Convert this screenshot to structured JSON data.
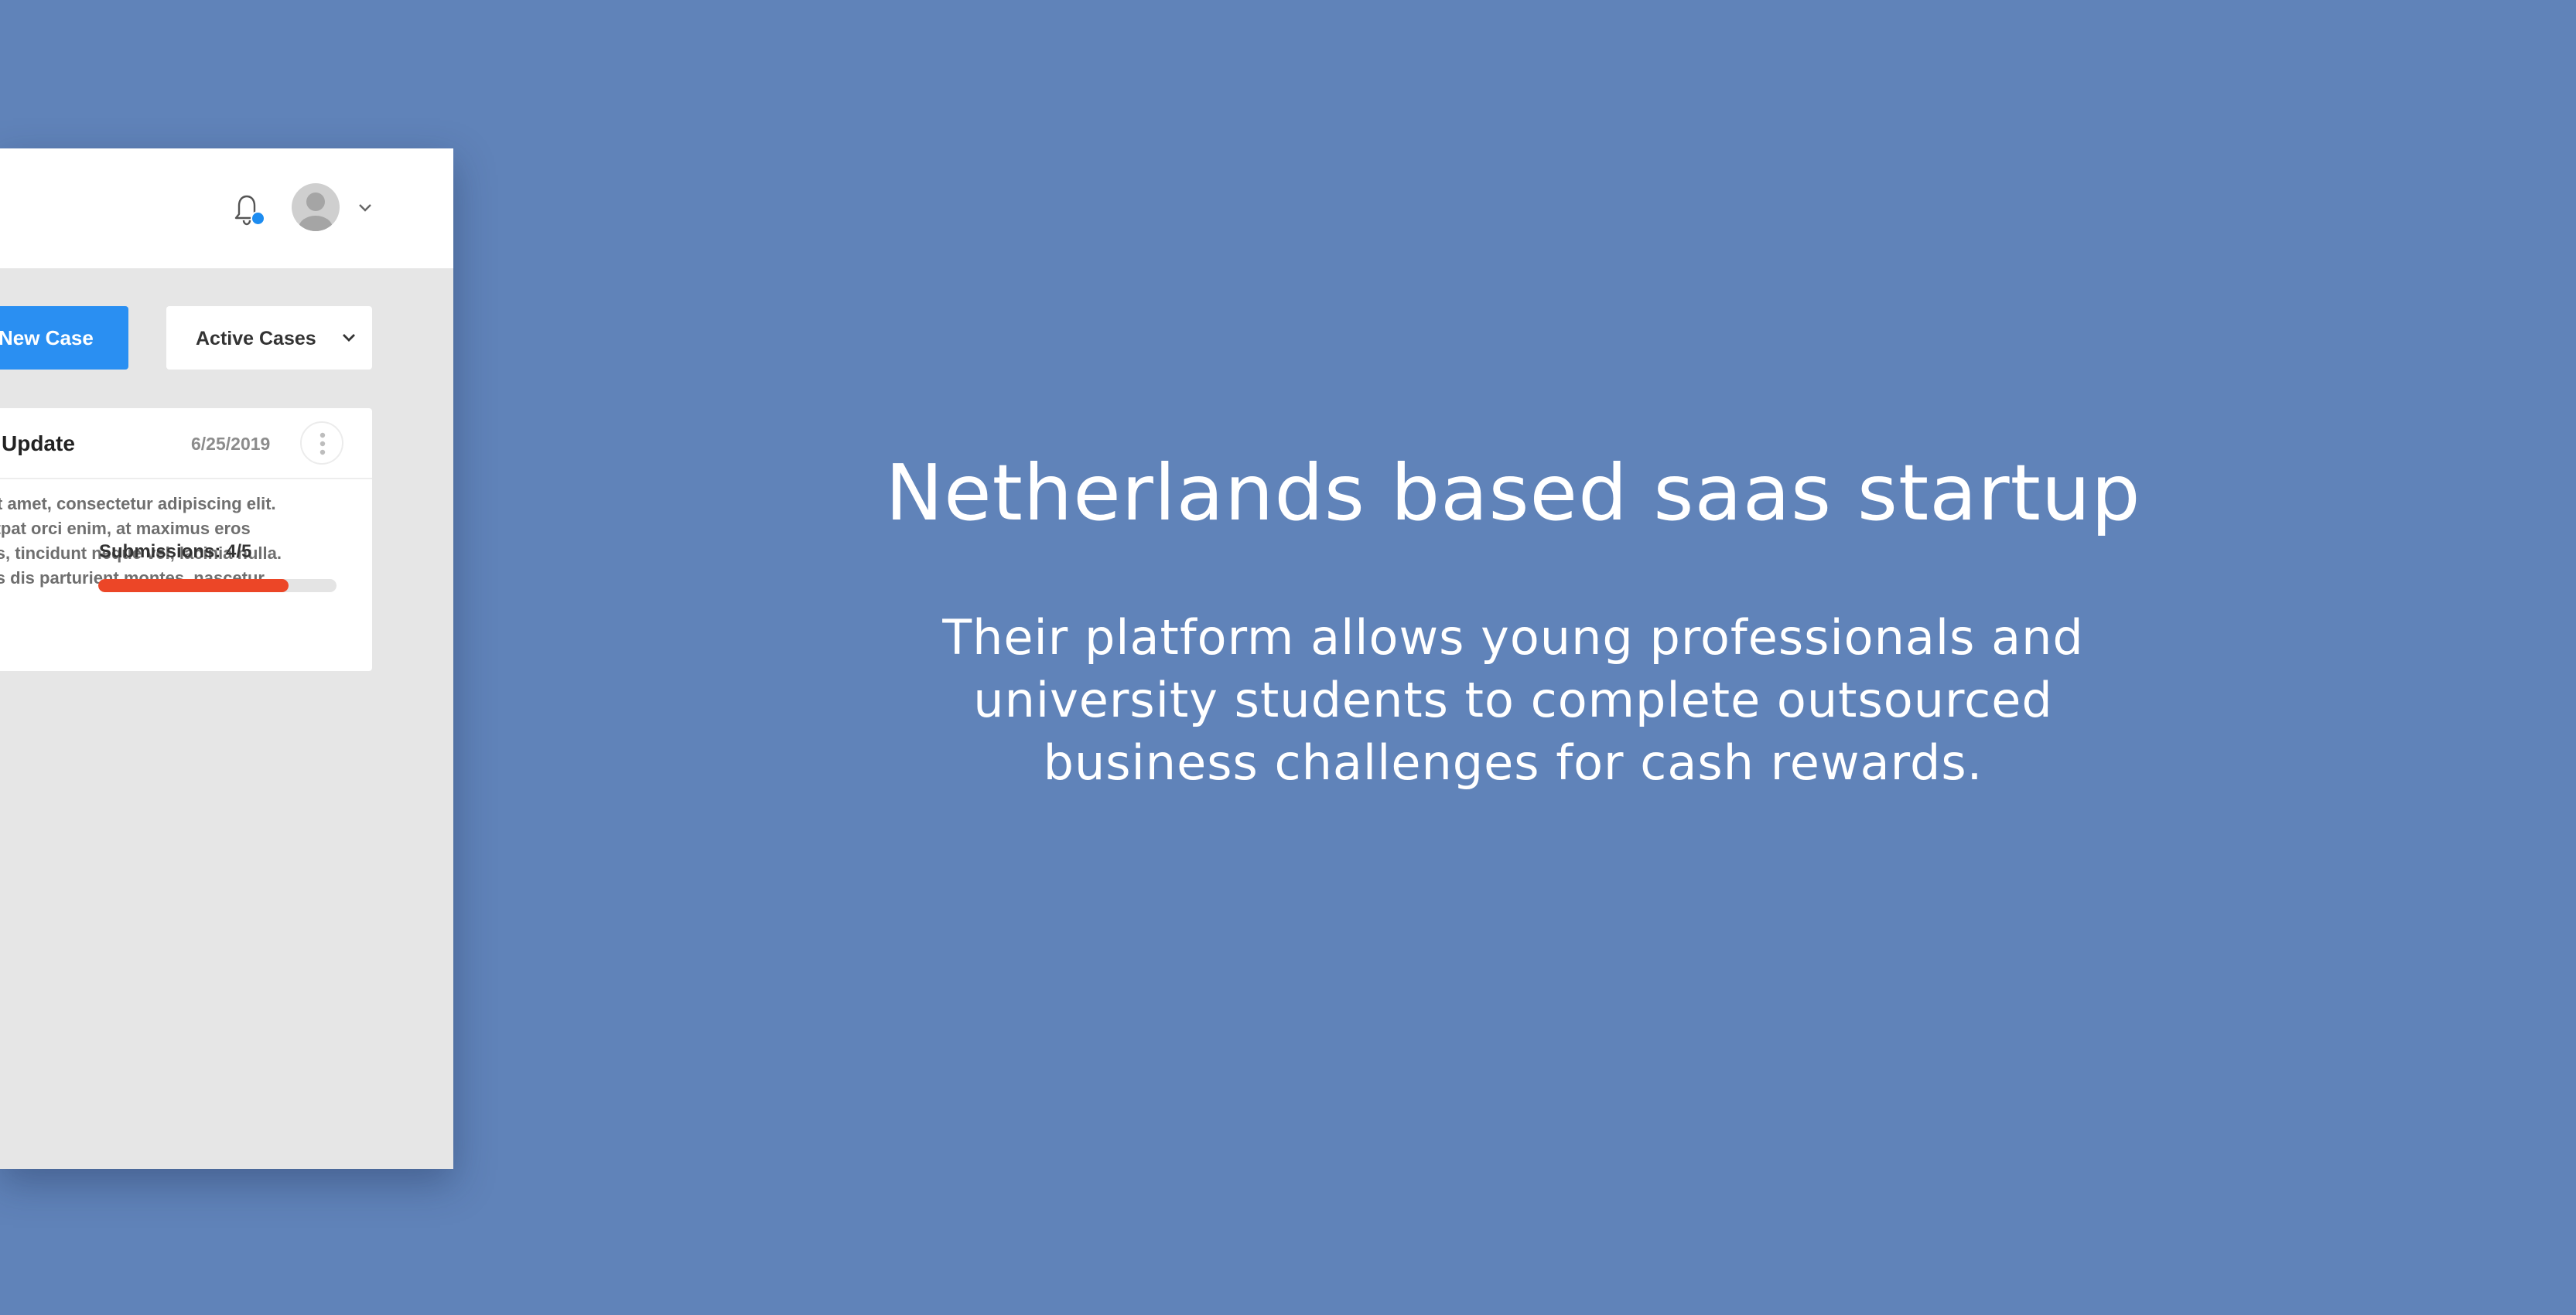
{
  "app": {
    "header": {
      "notification_icon": "bell-icon",
      "has_notification": true,
      "avatar_icon": "user-avatar-icon",
      "menu_icon": "chevron-down-icon"
    },
    "toolbar": {
      "new_case_label": "New Case",
      "filter_value": "Active Cases"
    },
    "case_card": {
      "title": "Update",
      "date": "6/25/2019",
      "menu_icon": "more-vertical-icon",
      "description_lines": [
        "olor sit amet, consectetur adipiscing elit.",
        "e volutpat orci enim, at maximus eros",
        "sagittis, tincidunt neque vel, lacinia nulla.",
        "magnis dis parturient montes, nascetur"
      ],
      "submissions_label": "Submissions: 4/5",
      "submissions_done": 4,
      "submissions_total": 5
    }
  },
  "hero": {
    "title": "Netherlands based saas startup",
    "subtitle_lines": [
      "Their platform allows young professionals and",
      "university students to complete outsourced",
      "business challenges for cash rewards."
    ]
  },
  "colors": {
    "background": "#6083b9",
    "primary": "#2a8ff2",
    "progress": "#ec4627",
    "notification_dot": "#1d8cf0"
  }
}
